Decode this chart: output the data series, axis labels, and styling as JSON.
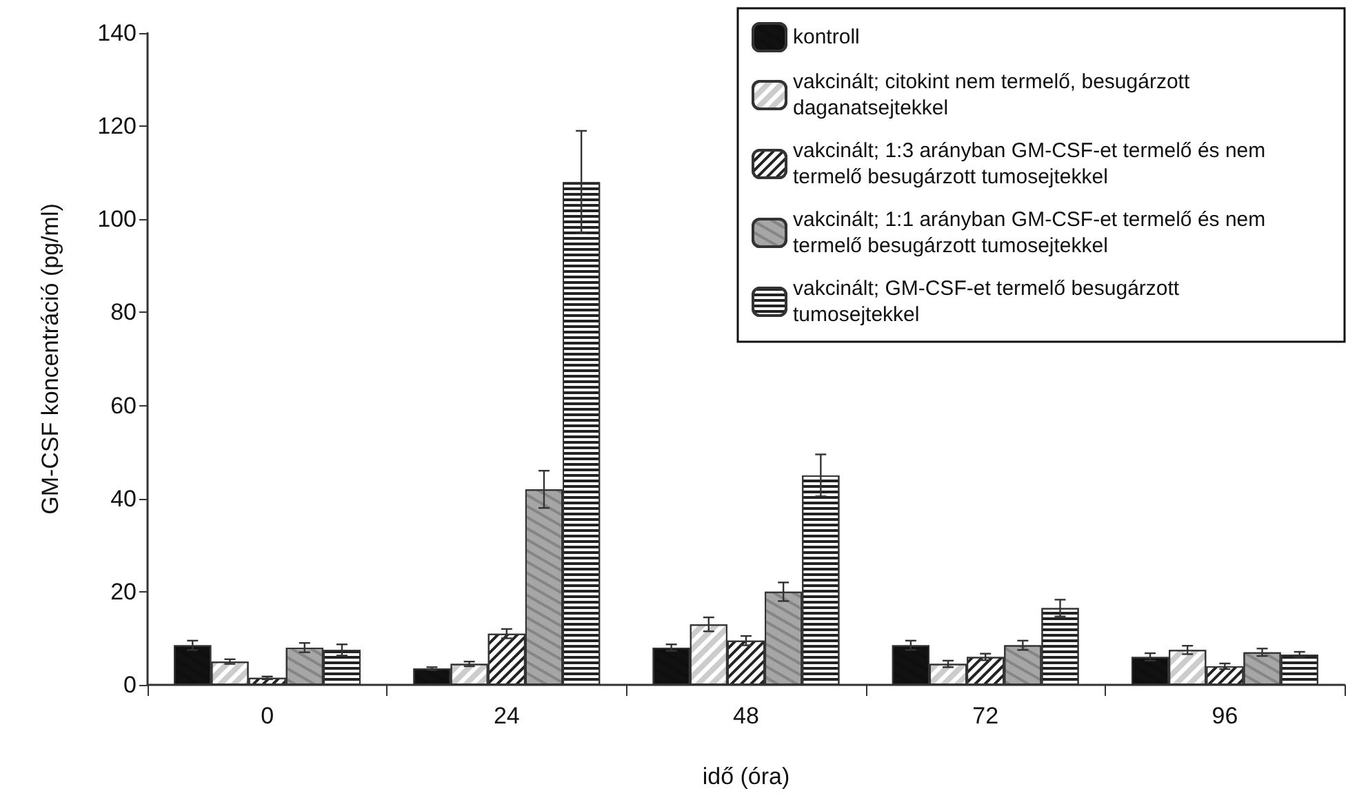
{
  "chart_data": {
    "type": "bar",
    "xlabel": "idő (óra)",
    "ylabel": "GM-CSF koncentráció (pg/ml)",
    "categories": [
      "0",
      "24",
      "48",
      "72",
      "96"
    ],
    "series": [
      {
        "name": "kontroll",
        "color": "#111111",
        "values": [
          8.5,
          3.5,
          8,
          8.5,
          6
        ],
        "errors": [
          1,
          0.3,
          0.7,
          1,
          0.8
        ]
      },
      {
        "name": "vakcinált; citokint nem termelő, besugárzott daganatsejtekkel",
        "color": "#ffffff",
        "values": [
          5,
          4.5,
          13,
          4.5,
          7.5
        ],
        "errors": [
          0.5,
          0.5,
          1.5,
          0.7,
          0.9
        ]
      },
      {
        "name": "vakcinált; 1:3 arányban GM-CSF-et termelő és nem termelő besugárzott tumosejtekkel",
        "color": "#ffffff",
        "values": [
          1.5,
          11,
          9.5,
          6,
          4
        ],
        "errors": [
          0.3,
          1,
          1,
          0.7,
          0.6
        ]
      },
      {
        "name": "vakcinált; 1:1 arányban GM-CSF-et termelő és nem termelő besugárzott tumosejtekkel",
        "color": "#a6a6a6",
        "values": [
          8,
          42,
          20,
          8.5,
          7
        ],
        "errors": [
          1,
          4,
          2,
          1,
          0.8
        ]
      },
      {
        "name": "vakcinált; GM-CSF-et termelő besugárzott tumosejtekkel",
        "color": "#ffffff",
        "values": [
          7.5,
          108,
          45,
          16.5,
          6.5
        ],
        "errors": [
          1.2,
          11,
          4.5,
          1.8,
          0.6
        ]
      }
    ],
    "ylim": [
      0,
      140
    ],
    "yticks": [
      0,
      20,
      40,
      60,
      80,
      100,
      120,
      140
    ],
    "grid": false,
    "legend": "top right"
  }
}
